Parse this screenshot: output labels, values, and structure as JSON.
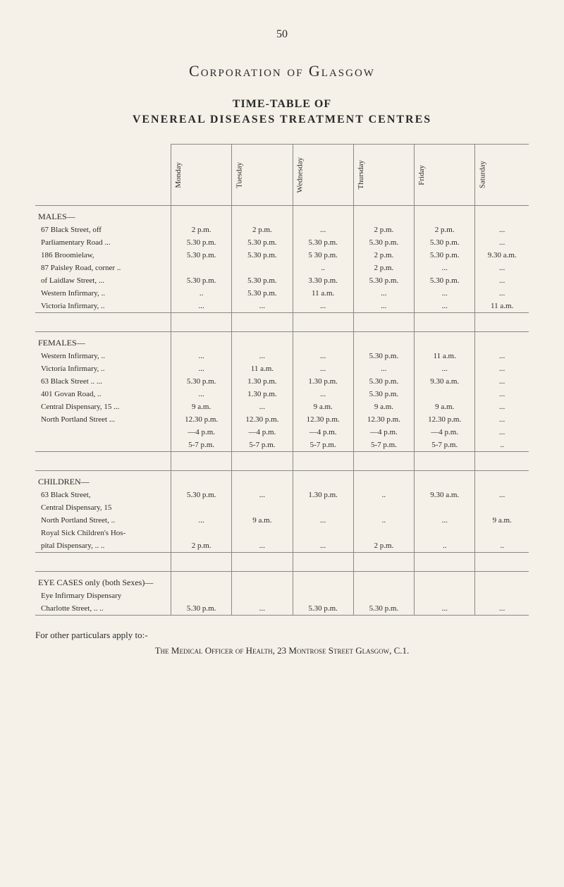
{
  "page_number": "50",
  "heading": "Corporation of Glasgow",
  "sub1": "TIME-TABLE OF",
  "sub2": "VENEREAL DISEASES TREATMENT CENTRES",
  "days": [
    "Monday",
    "Tuesday",
    "Wednesday",
    "Thursday",
    "Friday",
    "Saturday"
  ],
  "sections": {
    "males": {
      "label": "MALES—",
      "rows": [
        {
          "label": "67 Black Street, off",
          "cells": [
            "2 p.m.",
            "2 p.m.",
            "...",
            "2 p.m.",
            "2 p.m.",
            "..."
          ]
        },
        {
          "label": "Parliamentary Road    ...",
          "cells": [
            "5.30 p.m.",
            "5.30 p.m.",
            "5.30 p.m.",
            "5.30 p.m.",
            "5.30 p.m.",
            "..."
          ]
        },
        {
          "label": "186 Broomielaw,",
          "cells": [
            "5.30 p.m.",
            "5.30 p.m.",
            "5 30 p.m.",
            "2 p.m.",
            "5.30 p.m.",
            "9.30 a.m."
          ]
        },
        {
          "label": "87 Paisley Road, corner  ..",
          "cells": [
            "",
            "",
            "..",
            "2 p.m.",
            "...",
            "..."
          ]
        },
        {
          "label": "of Laidlaw Street,    ...",
          "cells": [
            "5.30 p.m.",
            "5.30 p.m.",
            "3.30 p.m.",
            "5.30 p.m.",
            "5.30 p.m.",
            "..."
          ]
        },
        {
          "label": "Western Infirmary, ..",
          "cells": [
            "..",
            "5.30 p.m.",
            "11 a.m.",
            "...",
            "...",
            "..."
          ]
        },
        {
          "label": "Victoria Infirmary, ..",
          "cells": [
            "...",
            "...",
            "...",
            "...",
            "...",
            "11 a.m."
          ]
        }
      ]
    },
    "females": {
      "label": "FEMALES—",
      "rows": [
        {
          "label": "Western Infirmary, ..",
          "cells": [
            "...",
            "...",
            "...",
            "5.30 p.m.",
            "11 a.m.",
            "..."
          ]
        },
        {
          "label": "Victoria Infirmary, ..",
          "cells": [
            "...",
            "11 a.m.",
            "...",
            "...",
            "...",
            "..."
          ]
        },
        {
          "label": "63 Black Street    ..    ...",
          "cells": [
            "5.30 p.m.",
            "1.30 p.m.",
            "1.30 p.m.",
            "5.30 p.m.",
            "9.30 a.m.",
            "..."
          ]
        },
        {
          "label": "401 Govan Road, ..",
          "cells": [
            "...",
            "1.30 p.m.",
            "...",
            "5.30 p.m.",
            "",
            "..."
          ]
        },
        {
          "label": "Central Dispensary, 15    ...",
          "cells": [
            "9 a.m.",
            "...",
            "9 a.m.",
            "9 a.m.",
            "9 a.m.",
            "..."
          ]
        },
        {
          "label": "North Portland Street  ...",
          "cells": [
            "12.30 p.m.",
            "12.30 p.m.",
            "12.30 p.m.",
            "12.30 p.m.",
            "12.30 p.m.",
            "..."
          ]
        },
        {
          "label": "",
          "cells": [
            "—4 p.m.",
            "—4 p.m.",
            "—4 p.m.",
            "—4 p.m.",
            "—4 p.m.",
            "..."
          ]
        },
        {
          "label": "",
          "cells": [
            "5-7 p.m.",
            "5-7 p.m.",
            "5-7 p.m.",
            "5-7 p.m.",
            "5-7 p.m.",
            ".."
          ]
        }
      ]
    },
    "children": {
      "label": "CHILDREN—",
      "rows": [
        {
          "label": "63 Black Street,",
          "cells": [
            "5.30 p.m.",
            "...",
            "1.30 p.m.",
            "..",
            "9.30 a.m.",
            "..."
          ]
        },
        {
          "label": "Central Dispensary, 15",
          "cells": [
            "",
            "",
            "",
            "",
            "",
            ""
          ]
        },
        {
          "label": "North Portland Street, ..",
          "cells": [
            "...",
            "9 a.m.",
            "...",
            "..",
            "...",
            "9 a.m."
          ]
        },
        {
          "label": "Royal Sick Children's Hos-",
          "cells": [
            "",
            "",
            "",
            "",
            "",
            ""
          ]
        },
        {
          "label": "pital Dispensary, ..    ..",
          "cells": [
            "2 p.m.",
            "...",
            "...",
            "2 p.m.",
            "..",
            ".."
          ]
        }
      ]
    },
    "eye": {
      "label": "EYE CASES only (both Sexes)—",
      "rows": [
        {
          "label": "Eye Infirmary Dispensary",
          "cells": [
            "",
            "",
            "",
            "",
            "",
            ""
          ]
        },
        {
          "label": "Charlotte Street, ..    ..",
          "cells": [
            "5.30 p.m.",
            "...",
            "5.30 p.m.",
            "5.30 p.m.",
            "...",
            "..."
          ]
        }
      ]
    }
  },
  "footer1": "For other particulars apply to:-",
  "footer2": "The Medical Officer of Health, 23 Montrose Street Glasgow, C.1."
}
